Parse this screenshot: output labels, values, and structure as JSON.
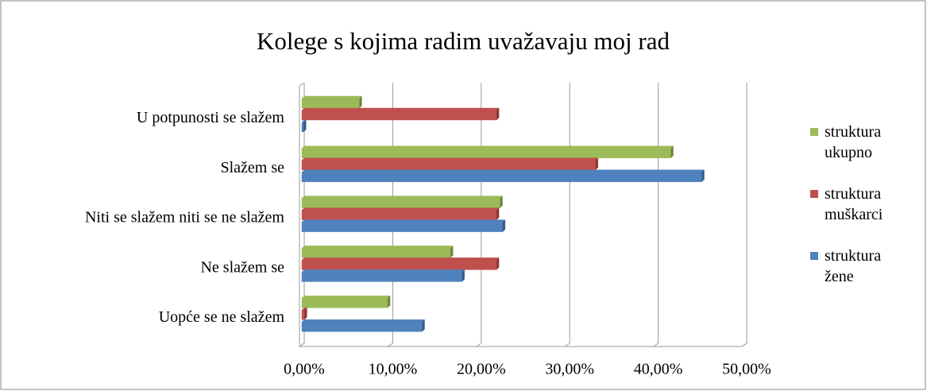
{
  "chart_data": {
    "type": "bar",
    "orientation": "horizontal",
    "title": "Kolege s kojima radim uvažavaju moj rad",
    "categories": [
      "U potpunosti se slažem",
      "Slažem se",
      "Niti se slažem niti se ne slažem",
      "Ne slažem se",
      "Uopće se ne slažem"
    ],
    "series": [
      {
        "name": "struktura ukupno",
        "color": "#9bbb59",
        "values": [
          6.5,
          41.7,
          22.4,
          16.8,
          9.7
        ]
      },
      {
        "name": "struktura muškarci",
        "color": "#c0504d",
        "values": [
          22.0,
          33.2,
          22.0,
          22.0,
          0.3
        ]
      },
      {
        "name": "struktura žene",
        "color": "#4f81bd",
        "values": [
          0.2,
          45.2,
          22.7,
          18.1,
          13.6
        ]
      }
    ],
    "xlim": [
      0,
      50
    ],
    "xticks": [
      {
        "value": 0,
        "label": "0,00%"
      },
      {
        "value": 10,
        "label": "10,00%"
      },
      {
        "value": 20,
        "label": "20,00%"
      },
      {
        "value": 30,
        "label": "30,00%"
      },
      {
        "value": 40,
        "label": "40,00%"
      },
      {
        "value": 50,
        "label": "50,00%"
      }
    ],
    "grid": true,
    "legend": "right"
  }
}
